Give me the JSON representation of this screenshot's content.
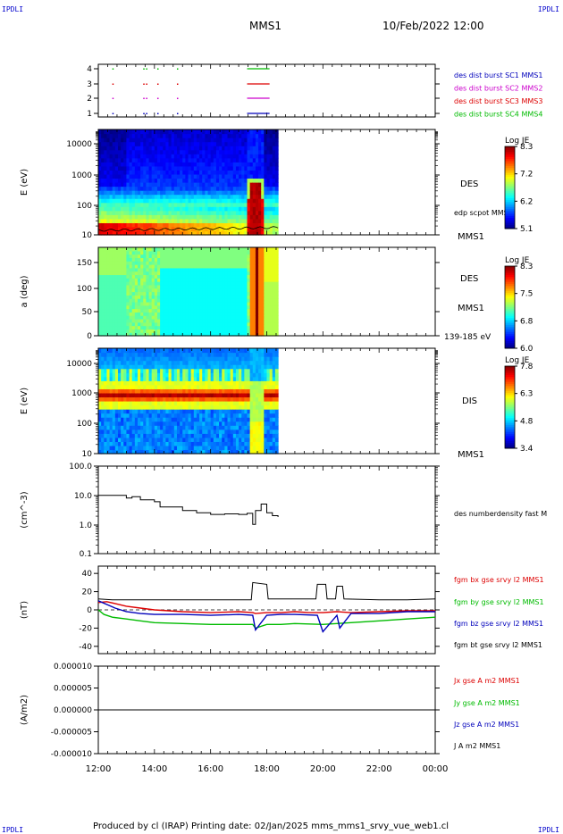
{
  "header": {
    "corner_left": "IPDLI",
    "corner_right": "IPDLI",
    "corner_bottom_left": "IPDLI",
    "corner_bottom_right": "IPDLI",
    "mission": "MMS1",
    "date": "10/Feb/2022 12:00"
  },
  "footer": {
    "text": "Produced by cl (IRAP)   Printing date: 02/Jan/2025   mms_mms1_srvy_vue_web1.cl"
  },
  "colors": {
    "red": "#dd0000",
    "magenta": "#cc00cc",
    "blue": "#0000bb",
    "green": "#00bb00",
    "black": "#000000"
  },
  "chart_data": [
    {
      "type": "scatter",
      "name": "burst-availability",
      "y_ticks": [
        "4",
        "3",
        "2",
        "1"
      ],
      "legend": [
        {
          "label": "des dist burst SC1 MMS1",
          "color": "#0000bb"
        },
        {
          "label": "des dist burst SC2 MMS2",
          "color": "#cc00cc"
        },
        {
          "label": "des dist burst SC3 MMS3",
          "color": "#dd0000"
        },
        {
          "label": "des dist burst SC4 MMS4",
          "color": "#00bb00"
        }
      ],
      "segments": [
        {
          "sc": 4,
          "start_hours": 17.3,
          "end_hours": 18.1
        },
        {
          "sc": 3,
          "start_hours": 17.3,
          "end_hours": 18.1
        },
        {
          "sc": 2,
          "start_hours": 17.3,
          "end_hours": 18.1
        },
        {
          "sc": 1,
          "start_hours": 17.3,
          "end_hours": 18.1
        }
      ],
      "dots_hours": [
        12.5,
        13.6,
        13.7,
        14.1,
        14.8
      ]
    },
    {
      "type": "heatmap",
      "name": "des-energy-spectrogram",
      "ylabel": "E (eV)",
      "y_ticks": [
        "10000",
        "1000",
        "100",
        "10"
      ],
      "ylim": [
        10,
        30000
      ],
      "yscale": "log",
      "instrument": "DES",
      "sc": "MMS1",
      "overlay": "edp scpot MMS1",
      "colorbar": {
        "title": "Log JE",
        "ticks": [
          "8.3",
          "7.2",
          "6.2",
          "5.1"
        ],
        "range": [
          5.1,
          8.3
        ]
      },
      "data_end_hours": 18.4
    },
    {
      "type": "heatmap",
      "name": "des-pitch-angle",
      "ylabel": "a (deg)",
      "y_ticks": [
        "150",
        "100",
        "50",
        "0"
      ],
      "ylim": [
        0,
        180
      ],
      "instrument": "DES",
      "sc": "MMS1",
      "energy_range": "139-185 eV",
      "colorbar": {
        "title": "Log JE",
        "ticks": [
          "8.3",
          "7.5",
          "6.8",
          "6.0"
        ],
        "range": [
          6.0,
          8.3
        ]
      },
      "data_end_hours": 18.4
    },
    {
      "type": "heatmap",
      "name": "dis-energy-spectrogram",
      "ylabel": "E (eV)",
      "y_ticks": [
        "10000",
        "1000",
        "100",
        "10"
      ],
      "ylim": [
        10,
        30000
      ],
      "yscale": "log",
      "instrument": "DIS",
      "sc": "MMS1",
      "colorbar": {
        "title": "Log JE",
        "ticks": [
          "7.8",
          "6.3",
          "4.8",
          "3.4"
        ],
        "range": [
          3.4,
          7.8
        ]
      },
      "data_end_hours": 18.4
    },
    {
      "type": "line",
      "name": "density",
      "ylabel": "(cm^-3)",
      "y_ticks": [
        "100.0",
        "10.0",
        "1.0",
        "0.1"
      ],
      "ylim": [
        0.1,
        100
      ],
      "yscale": "log",
      "series": [
        {
          "name": "des numberdensity fast M",
          "color": "#000000",
          "x": [
            12.0,
            12.5,
            13.0,
            13.2,
            13.5,
            14.0,
            14.2,
            14.5,
            15.0,
            15.5,
            16.0,
            16.5,
            17.0,
            17.3,
            17.5,
            17.6,
            17.8,
            18.0,
            18.2,
            18.4
          ],
          "y": [
            10,
            10,
            8,
            9,
            7,
            6,
            4,
            4,
            3,
            2.5,
            2.2,
            2.3,
            2.2,
            2.4,
            1,
            3,
            5,
            2.5,
            2,
            1.8
          ]
        }
      ]
    },
    {
      "type": "line",
      "name": "magnetic-field",
      "ylabel": "(nT)",
      "y_ticks": [
        "40",
        "20",
        "0",
        "-20",
        "-40"
      ],
      "ylim": [
        -48,
        48
      ],
      "series": [
        {
          "name": "fgm bx gse srvy l2 MMS1",
          "color": "#dd0000",
          "x": [
            12.0,
            12.3,
            12.6,
            13.0,
            13.5,
            14.0,
            15.0,
            16.0,
            17.0,
            17.5,
            17.6,
            18.0,
            18.5,
            19.0,
            19.5,
            20.0,
            20.5,
            21.0,
            22.0,
            23.0,
            24.0
          ],
          "y": [
            8,
            9,
            7,
            4,
            2,
            0,
            -2,
            -3,
            -2,
            -3,
            -4,
            -3,
            -3,
            -2,
            -3,
            -3,
            -2,
            -3,
            -2,
            -1,
            -1
          ]
        },
        {
          "name": "fgm by gse srvy l2 MMS1",
          "color": "#00bb00",
          "x": [
            12.0,
            12.2,
            12.5,
            13.0,
            13.5,
            14.0,
            15.0,
            16.0,
            17.0,
            17.5,
            17.6,
            18.0,
            18.5,
            19.0,
            20.0,
            20.5,
            21.0,
            22.0,
            23.0,
            24.0
          ],
          "y": [
            0,
            -5,
            -8,
            -10,
            -12,
            -14,
            -15,
            -16,
            -16,
            -16,
            -20,
            -16,
            -16,
            -15,
            -16,
            -15,
            -14,
            -12,
            -10,
            -8
          ]
        },
        {
          "name": "fgm bz gse srvy l2 MMS1",
          "color": "#0000bb",
          "x": [
            12.0,
            12.3,
            12.6,
            13.0,
            13.5,
            14.0,
            15.0,
            16.0,
            17.0,
            17.5,
            17.6,
            18.0,
            18.5,
            19.0,
            19.8,
            20.0,
            20.5,
            20.6,
            21.0,
            22.0,
            23.0,
            24.0
          ],
          "y": [
            10,
            6,
            2,
            -2,
            -4,
            -5,
            -5,
            -6,
            -5,
            -6,
            -22,
            -6,
            -5,
            -5,
            -6,
            -24,
            -6,
            -20,
            -4,
            -4,
            -2,
            -2
          ]
        },
        {
          "name": "fgm bt gse srvy l2 MMS1",
          "color": "#000000",
          "x": [
            12.0,
            12.5,
            13.0,
            13.5,
            14.0,
            15.0,
            16.0,
            17.0,
            17.45,
            17.5,
            18.0,
            18.05,
            19.0,
            19.75,
            19.8,
            20.1,
            20.15,
            20.45,
            20.5,
            20.7,
            20.75,
            22.0,
            23.0,
            24.0
          ],
          "y": [
            12,
            11,
            11,
            11,
            11,
            11,
            11,
            11,
            11,
            30,
            28,
            12,
            12,
            12,
            28,
            28,
            12,
            12,
            26,
            26,
            12,
            11,
            11,
            12
          ]
        }
      ]
    },
    {
      "type": "line",
      "name": "current-density",
      "ylabel": "(A/m2)",
      "y_ticks": [
        "0.000010",
        "0.000005",
        "0.000000",
        "-0.000005",
        "-0.000010"
      ],
      "ylim": [
        -1e-05,
        1e-05
      ],
      "series": [
        {
          "name": "Jx gse A m2 MMS1",
          "color": "#dd0000",
          "x": [
            12.0,
            18.4
          ],
          "y": [
            0.0,
            0.0
          ]
        },
        {
          "name": "Jy gse A m2 MMS1",
          "color": "#00bb00",
          "x": [
            12.0,
            18.4
          ],
          "y": [
            0.0,
            0.0
          ]
        },
        {
          "name": "Jz gse A m2 MMS1",
          "color": "#0000bb",
          "x": [
            12.0,
            18.4
          ],
          "y": [
            0.0,
            0.0
          ]
        },
        {
          "name": "J A m2 MMS1",
          "color": "#000000",
          "x": [
            12.0,
            24.0
          ],
          "y": [
            0.0,
            0.0
          ]
        }
      ]
    }
  ],
  "x_axis": {
    "ticks": [
      "12:00",
      "14:00",
      "16:00",
      "18:00",
      "20:00",
      "22:00",
      "00:00"
    ],
    "range_hours": [
      12,
      24
    ]
  }
}
